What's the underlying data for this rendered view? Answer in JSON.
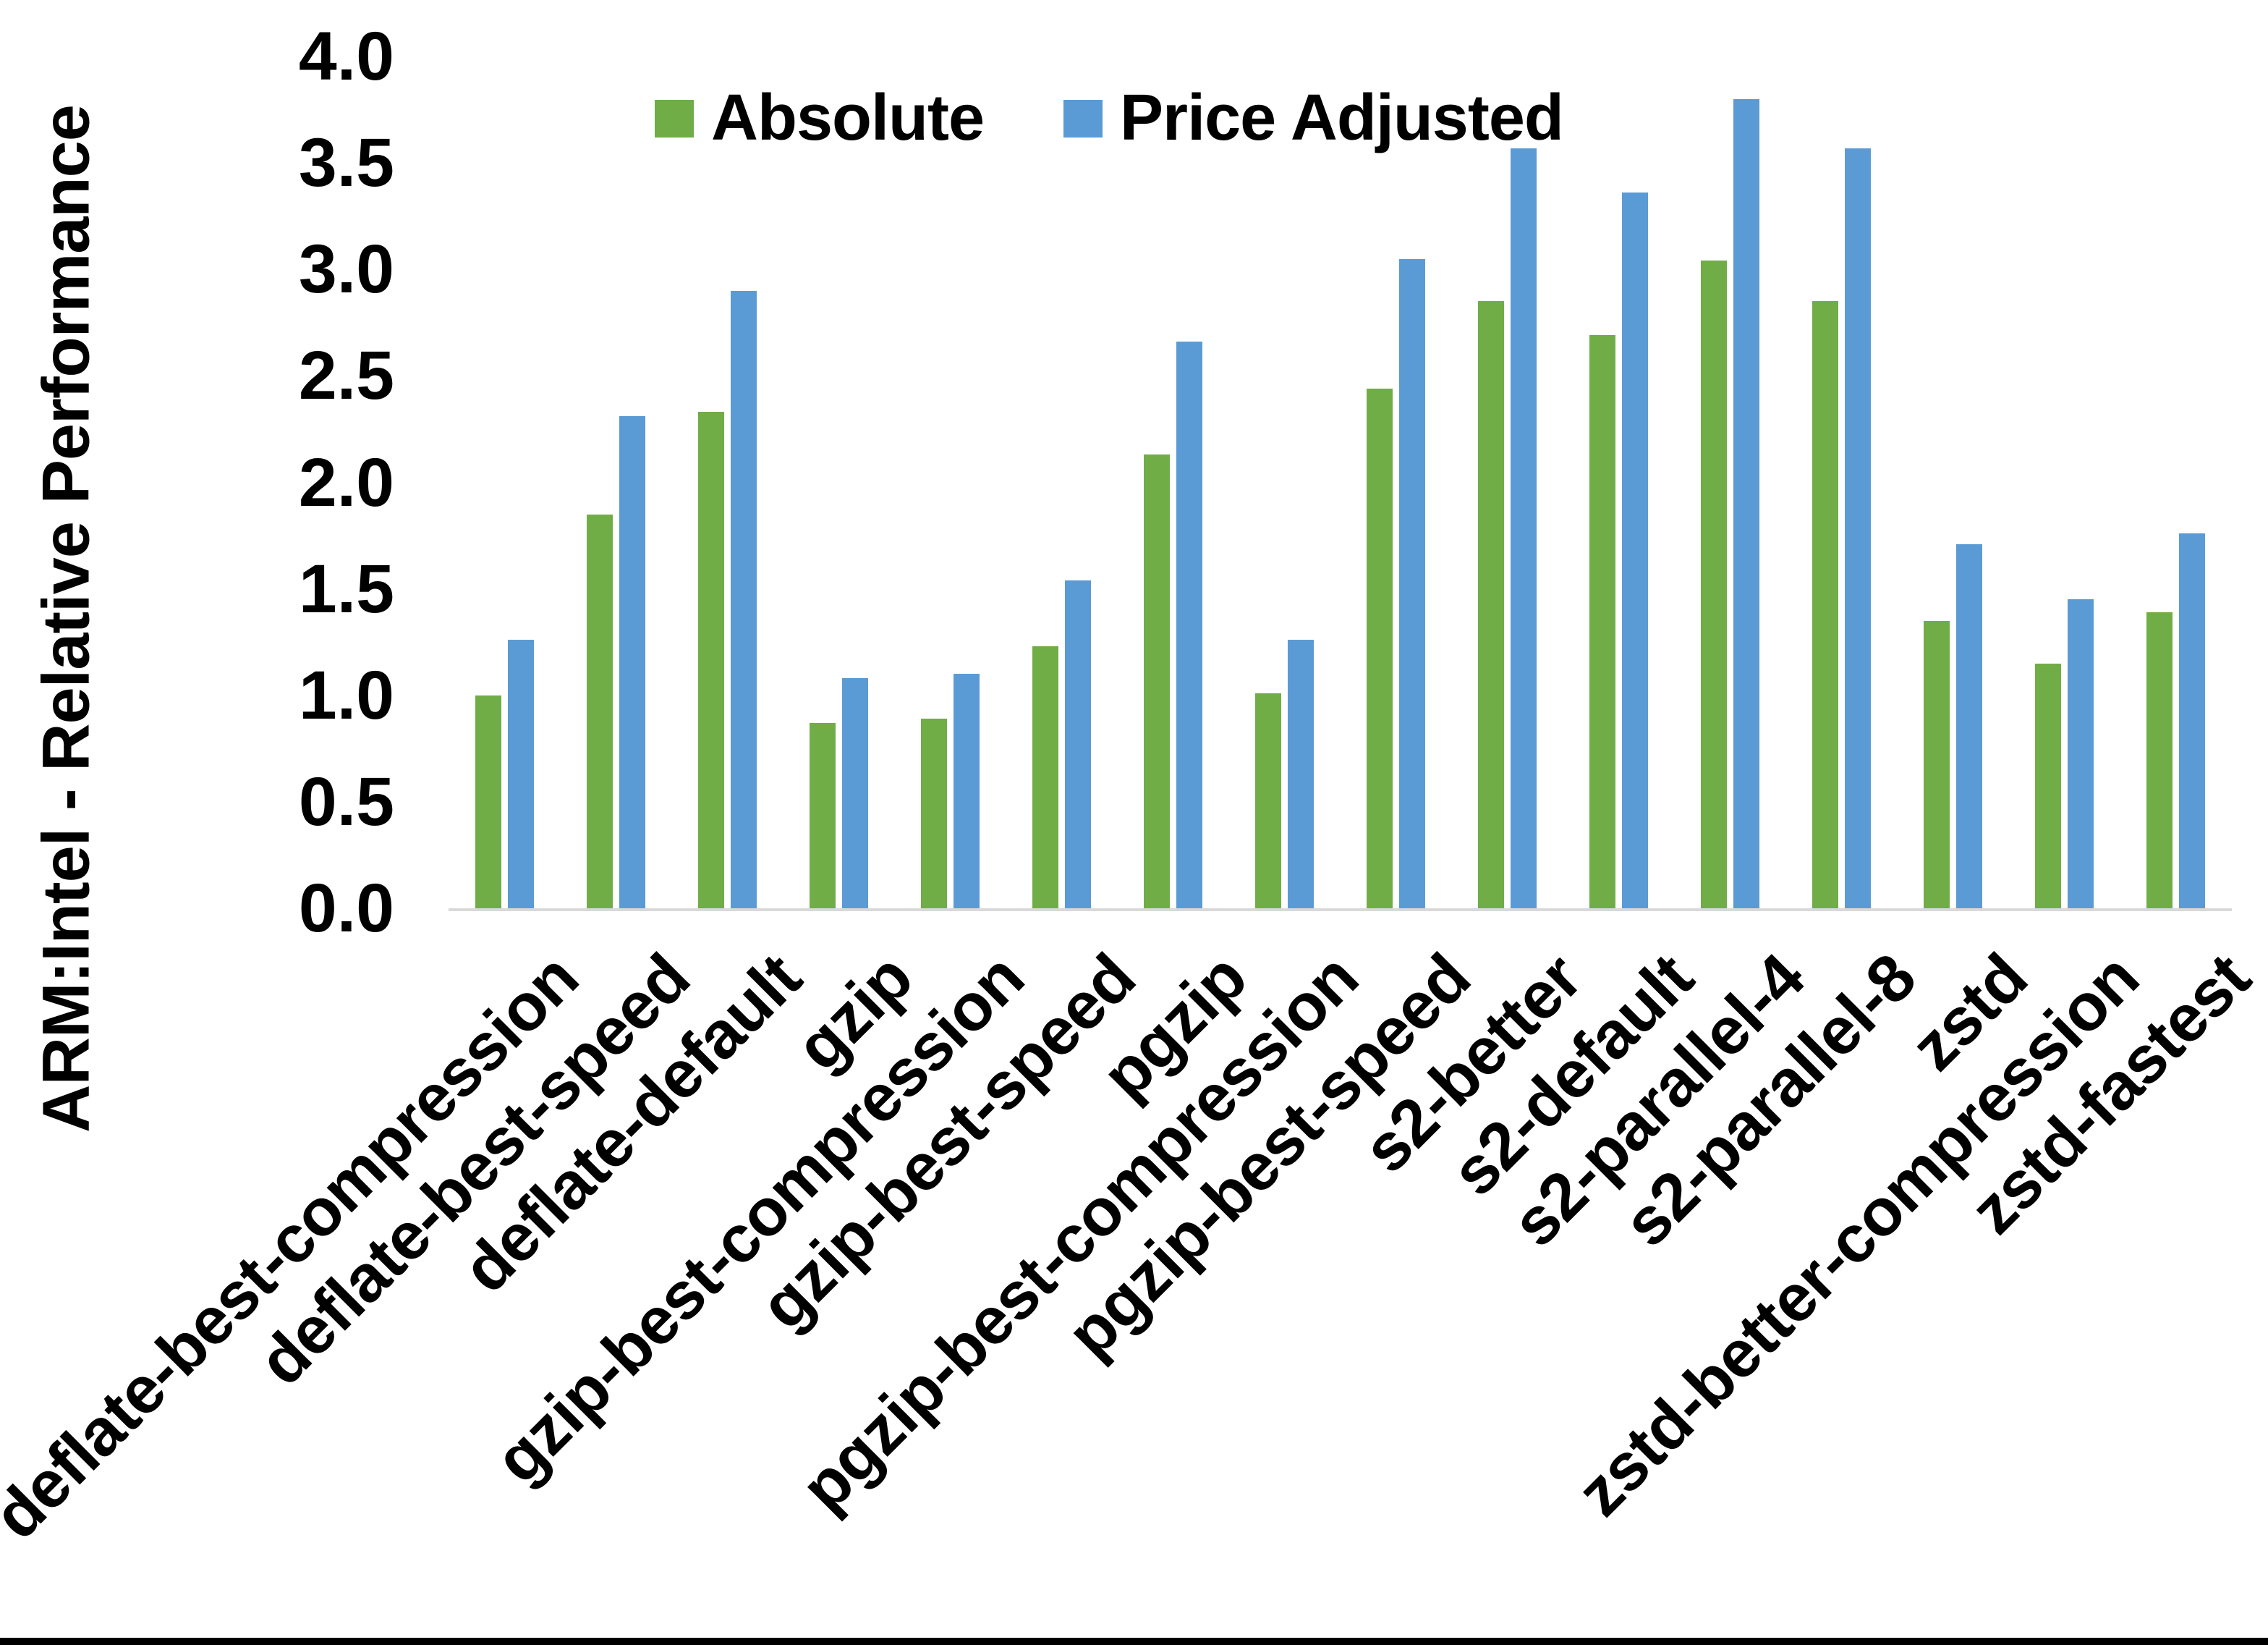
{
  "chart_data": {
    "type": "bar",
    "title": "",
    "xlabel": "",
    "ylabel": "ARM:Intel - Relative Performance",
    "ylim": [
      0,
      4.0
    ],
    "ytick_step": 0.5,
    "yticks": [
      "0.0",
      "0.5",
      "1.0",
      "1.5",
      "2.0",
      "2.5",
      "3.0",
      "3.5",
      "4.0"
    ],
    "grid": false,
    "legend_position": "top-center",
    "axis_line_color": "#d9d9d9",
    "categories": [
      "deflate-best-compression",
      "deflate-best-speed",
      "deflate-default",
      "gzip",
      "gzip-best-compression",
      "gzip-best-speed",
      "pgzip",
      "pgzip-best-compression",
      "pgzip-best-speed",
      "s2-better",
      "s2-default",
      "s2-parallel-4",
      "s2-parallel-8",
      "zstd",
      "zstd-better-compression",
      "zstd-fastest"
    ],
    "series": [
      {
        "name": "Absolute",
        "color": "#70AD47",
        "values": [
          1.0,
          1.85,
          2.33,
          0.87,
          0.89,
          1.23,
          2.13,
          1.01,
          2.44,
          2.85,
          2.69,
          3.04,
          2.85,
          1.35,
          1.15,
          1.39
        ]
      },
      {
        "name": "Price Adjusted",
        "color": "#5B9BD5",
        "values": [
          1.26,
          2.31,
          2.9,
          1.08,
          1.1,
          1.54,
          2.66,
          1.26,
          3.05,
          3.57,
          3.36,
          3.8,
          3.57,
          1.71,
          1.45,
          1.76
        ]
      }
    ]
  }
}
